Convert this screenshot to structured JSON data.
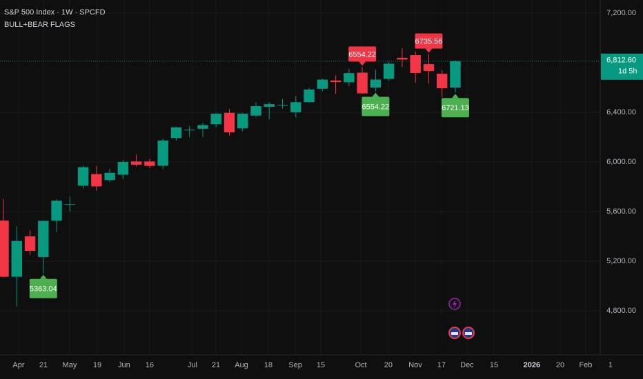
{
  "chart_data": {
    "type": "candlestick",
    "title": "S&P 500 Index · 1W · SPCFD",
    "subtitle": "BULL+BEAR FLAGS",
    "x": [
      0,
      1,
      2,
      3,
      4,
      5,
      6,
      7,
      8,
      9,
      10,
      11,
      12,
      13,
      14,
      15,
      16,
      17,
      18,
      19,
      20,
      21,
      22,
      23,
      24,
      25,
      26,
      27,
      28,
      29,
      30,
      31,
      32,
      33,
      34
    ],
    "open": [
      5527,
      5074,
      5400,
      5233,
      5526,
      5656,
      5808,
      5902,
      5854,
      5897,
      6004,
      6004,
      5969,
      6193,
      6259,
      6268,
      6304,
      6396,
      6271,
      6374,
      6445,
      6457,
      6401,
      6482,
      6590,
      6657,
      6643,
      6720,
      6600,
      6670,
      6840,
      6861,
      6789,
      6711,
      6600
    ],
    "high": [
      5700,
      5481,
      5450,
      5528,
      5700,
      5720,
      5969,
      5968,
      5944,
      6016,
      6059,
      6024,
      6187,
      6284,
      6290,
      6315,
      6395,
      6427,
      6395,
      6481,
      6481,
      6509,
      6533,
      6600,
      6672,
      6699,
      6750,
      6765,
      6744,
      6807,
      6920,
      6890,
      6870,
      6740,
      6820
    ],
    "low": [
      5069,
      4835,
      5250,
      5101,
      5433,
      5600,
      5786,
      5767,
      5837,
      5861,
      5963,
      5952,
      5943,
      6172,
      6201,
      6201,
      6281,
      6212,
      6245,
      6360,
      6343,
      6430,
      6360,
      6477,
      6570,
      6551,
      6611,
      6550,
      6570,
      6652,
      6766,
      6639,
      6631,
      6521,
      6560
    ],
    "close": [
      5074,
      5363,
      5283,
      5525,
      5687,
      5660,
      5958,
      5803,
      5912,
      6000,
      5977,
      5968,
      6173,
      6279,
      6260,
      6297,
      6389,
      6238,
      6389,
      6450,
      6466,
      6460,
      6482,
      6584,
      6664,
      6644,
      6716,
      6553,
      6664,
      6792,
      6826,
      6717,
      6733,
      6594,
      6812.6
    ],
    "up_color": "#089981",
    "down_color": "#f23645",
    "xlim": [
      -0.26,
      46.72
    ],
    "ylim": [
      4444,
      7306
    ],
    "xticks": [
      {
        "value": 1.14,
        "label": "Apr"
      },
      {
        "value": 3.01,
        "label": "21"
      },
      {
        "value": 4.98,
        "label": "May"
      },
      {
        "value": 7.06,
        "label": "19"
      },
      {
        "value": 9.08,
        "label": "Jun"
      },
      {
        "value": 11.0,
        "label": "16"
      },
      {
        "value": 14.22,
        "label": "Jul"
      },
      {
        "value": 15.99,
        "label": "21"
      },
      {
        "value": 17.91,
        "label": "Aug"
      },
      {
        "value": 19.93,
        "label": "18"
      },
      {
        "value": 21.96,
        "label": "Sep"
      },
      {
        "value": 23.88,
        "label": "15"
      },
      {
        "value": 26.89,
        "label": "Oct"
      },
      {
        "value": 28.96,
        "label": "20"
      },
      {
        "value": 30.99,
        "label": "Nov"
      },
      {
        "value": 32.96,
        "label": "17"
      },
      {
        "value": 34.88,
        "label": "Dec"
      },
      {
        "value": 36.91,
        "label": "15"
      },
      {
        "value": 39.76,
        "label": "2026"
      },
      {
        "value": 41.89,
        "label": "20"
      },
      {
        "value": 43.81,
        "label": "Feb"
      },
      {
        "value": 45.68,
        "label": "1"
      }
    ],
    "yticks": [
      {
        "value": 4800,
        "label": "4,800.00"
      },
      {
        "value": 5200,
        "label": "5,200.00"
      },
      {
        "value": 5600,
        "label": "5,600.00"
      },
      {
        "value": 6000,
        "label": "6,000.00"
      },
      {
        "value": 6400,
        "label": "6,400.00"
      },
      {
        "value": 7200,
        "label": "7,200.00"
      }
    ],
    "grid": true,
    "last_price": {
      "value": 6812.6,
      "label": "6,812.60"
    },
    "countdown": "1d 5h",
    "flags": [
      {
        "x": 3,
        "value": 5363.04,
        "kind": "bull"
      },
      {
        "x": 27,
        "value": 6554.22,
        "kind": "bear"
      },
      {
        "x": 28,
        "value": 6554.22,
        "kind": "bull"
      },
      {
        "x": 32,
        "value": 6735.56,
        "kind": "bear"
      },
      {
        "x": 34,
        "value": 6721.13,
        "kind": "bull"
      }
    ],
    "flag_colors": {
      "bull": "#4caf50",
      "bear": "#f23645"
    }
  }
}
